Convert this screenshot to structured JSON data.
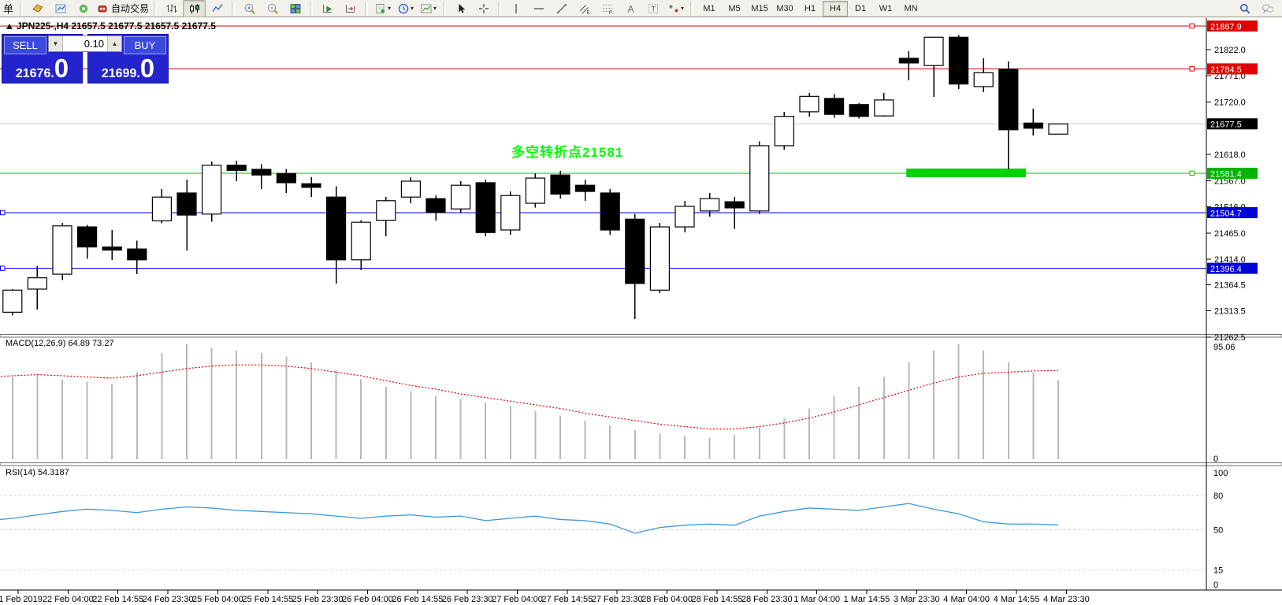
{
  "toolbar": {
    "left_text": "单",
    "groups": [
      {
        "items": [
          {
            "icon": "order",
            "name": "new-order"
          },
          {
            "icon": "profile",
            "name": "profiles"
          },
          {
            "icon": "signal",
            "name": "signals"
          },
          {
            "icon": "autotrade",
            "name": "auto-trading",
            "label": "自动交易"
          }
        ]
      },
      {
        "items": [
          {
            "icon": "bars",
            "name": "bar-chart-mode"
          },
          {
            "icon": "candles",
            "name": "candlestick-mode",
            "active": true
          },
          {
            "icon": "linechart",
            "name": "line-chart-mode"
          }
        ]
      },
      {
        "items": [
          {
            "icon": "zoomin",
            "name": "zoom-in"
          },
          {
            "icon": "zoomout",
            "name": "zoom-out"
          },
          {
            "icon": "tiles",
            "name": "tile-windows"
          }
        ]
      },
      {
        "items": [
          {
            "icon": "shiftplay",
            "name": "auto-scroll"
          },
          {
            "icon": "shiftend",
            "name": "chart-shift"
          }
        ]
      },
      {
        "items": [
          {
            "icon": "addind",
            "name": "new-chart",
            "caret": true
          },
          {
            "icon": "clock",
            "name": "periods",
            "caret": true
          },
          {
            "icon": "template",
            "name": "templates",
            "caret": true
          }
        ]
      },
      {
        "items": [
          {
            "icon": "cursor",
            "name": "cursor-tool"
          },
          {
            "icon": "crosshair",
            "name": "crosshair-tool"
          }
        ]
      },
      {
        "items": [
          {
            "icon": "vline",
            "name": "vertical-line-tool"
          },
          {
            "icon": "hline",
            "name": "horizontal-line-tool"
          },
          {
            "icon": "tline",
            "name": "trendline-tool"
          },
          {
            "icon": "channel",
            "name": "equidistant-channel-tool"
          },
          {
            "icon": "fibo",
            "name": "fibonacci-tool"
          },
          {
            "icon": "textA",
            "name": "text-tool"
          },
          {
            "icon": "labelT",
            "name": "text-label-tool"
          },
          {
            "icon": "arrows",
            "name": "arrows-tool",
            "caret": true
          }
        ]
      },
      {
        "type": "timeframes",
        "items": [
          {
            "text": "M1"
          },
          {
            "text": "M5"
          },
          {
            "text": "M15"
          },
          {
            "text": "M30"
          },
          {
            "text": "H1"
          },
          {
            "text": "H4",
            "active": true
          },
          {
            "text": "D1"
          },
          {
            "text": "W1"
          },
          {
            "text": "MN"
          }
        ]
      },
      {
        "type": "spacer"
      },
      {
        "items": [
          {
            "icon": "search",
            "name": "search"
          },
          {
            "icon": "chat",
            "name": "chat"
          }
        ]
      }
    ]
  },
  "quote_panel": {
    "sell_label": "SELL",
    "buy_label": "BUY",
    "volume": "0.10",
    "down_glyph": "▼",
    "up_glyph": "▲",
    "sell_price_small": "21676.",
    "sell_price_big": "0",
    "buy_price_small": "21699.",
    "buy_price_big": "0"
  },
  "chart": {
    "title": "JPN225-,H4 21657.5 21677.5 21657.5 21677.5",
    "annotation": {
      "text": "多空转折点21581",
      "color": "#00ff00"
    },
    "levels": [
      {
        "price": 21867.9,
        "line_color": "#e00000",
        "badge_bg": "#e00000",
        "anchor": "right"
      },
      {
        "price": 21784.5,
        "line_color": "#e00000",
        "badge_bg": "#e00000",
        "anchor": "right"
      },
      {
        "price": 21677.5,
        "line_color": "#c8c8c8",
        "badge_bg": "#000000",
        "anchor": null,
        "current": true
      },
      {
        "price": 21581.4,
        "line_color": "#00c000",
        "badge_bg": "#00b400",
        "anchor": "right"
      },
      {
        "price": 21504.7,
        "line_color": "#0000ee",
        "badge_bg": "#0000d8",
        "anchor": "left"
      },
      {
        "price": 21396.4,
        "line_color": "#0000ee",
        "badge_bg": "#0000d8",
        "anchor": "left"
      }
    ],
    "green_zone": {
      "from_candle": 36.9,
      "to_candle": 41.7,
      "price": 21581.4,
      "color": "#00d300"
    }
  },
  "macd": {
    "label": "MACD(12,26,9) 64.89 73.27",
    "axis_labels": [
      "95.06",
      "0"
    ]
  },
  "rsi": {
    "label": "RSI(14) 54.3187",
    "axis_labels": [
      100,
      80,
      50,
      15,
      0
    ]
  },
  "time_axis": [
    "21 Feb 2019",
    "22 Feb 04:00",
    "22 Feb 14:55",
    "24 Feb 23:30",
    "25 Feb 04:00",
    "25 Feb 14:55",
    "25 Feb 23:30",
    "26 Feb 04:00",
    "26 Feb 14:55",
    "26 Feb 23:30",
    "27 Feb 04:00",
    "27 Feb 14:55",
    "27 Feb 23:30",
    "28 Feb 04:00",
    "28 Feb 14:55",
    "28 Feb 23:30",
    "1 Mar 04:00",
    "1 Mar 14:55",
    "3 Mar 23:30",
    "4 Mar 04:00",
    "4 Mar 14:55",
    "4 Mar 23:30"
  ],
  "chart_data": [
    {
      "type": "candlestick",
      "title": "JPN225-,H4",
      "ylim": [
        21262.5,
        21890
      ],
      "y_ticks": [
        21822.0,
        21771.0,
        21720.0,
        21618.0,
        21567.0,
        21516.0,
        21465.0,
        21414.0,
        21364.5,
        21313.5,
        21262.5
      ],
      "x_labels": [
        "21 Feb 2019",
        "22 Feb 04:00",
        "22 Feb 14:55",
        "24 Feb 23:30",
        "25 Feb 04:00",
        "25 Feb 14:55",
        "25 Feb 23:30",
        "26 Feb 04:00",
        "26 Feb 14:55",
        "26 Feb 23:30",
        "27 Feb 04:00",
        "27 Feb 14:55",
        "27 Feb 23:30",
        "28 Feb 04:00",
        "28 Feb 14:55",
        "28 Feb 23:30",
        "1 Mar 04:00",
        "1 Mar 14:55",
        "3 Mar 23:30",
        "4 Mar 04:00",
        "4 Mar 14:55",
        "4 Mar 23:30"
      ],
      "ohlc": [
        [
          21300,
          21348,
          21295,
          21345
        ],
        [
          21311,
          21356,
          21305,
          21354
        ],
        [
          21356,
          21401,
          21316,
          21378
        ],
        [
          21385,
          21485,
          21374,
          21479
        ],
        [
          21477,
          21481,
          21415,
          21438
        ],
        [
          21438,
          21471,
          21413,
          21432
        ],
        [
          21434,
          21450,
          21385,
          21413
        ],
        [
          21489,
          21551,
          21484,
          21535
        ],
        [
          21543,
          21569,
          21431,
          21500
        ],
        [
          21502,
          21604,
          21487,
          21597
        ],
        [
          21597,
          21606,
          21566,
          21587
        ],
        [
          21589,
          21599,
          21551,
          21578
        ],
        [
          21581,
          21590,
          21543,
          21563
        ],
        [
          21561,
          21574,
          21535,
          21554
        ],
        [
          21535,
          21556,
          21367,
          21413
        ],
        [
          21413,
          21490,
          21393,
          21486
        ],
        [
          21490,
          21535,
          21459,
          21528
        ],
        [
          21535,
          21574,
          21523,
          21566
        ],
        [
          21532,
          21538,
          21489,
          21505
        ],
        [
          21512,
          21566,
          21505,
          21558
        ],
        [
          21563,
          21569,
          21459,
          21466
        ],
        [
          21471,
          21546,
          21462,
          21538
        ],
        [
          21523,
          21581,
          21515,
          21572
        ],
        [
          21578,
          21586,
          21532,
          21541
        ],
        [
          21558,
          21569,
          21528,
          21546
        ],
        [
          21543,
          21551,
          21462,
          21471
        ],
        [
          21492,
          21502,
          21298,
          21367
        ],
        [
          21354,
          21485,
          21348,
          21477
        ],
        [
          21477,
          21528,
          21466,
          21517
        ],
        [
          21508,
          21543,
          21497,
          21532
        ],
        [
          21526,
          21535,
          21473,
          21514
        ],
        [
          21508,
          21643,
          21502,
          21635
        ],
        [
          21635,
          21701,
          21627,
          21692
        ],
        [
          21701,
          21738,
          21692,
          21731
        ],
        [
          21727,
          21735,
          21689,
          21696
        ],
        [
          21715,
          21718,
          21688,
          21692
        ],
        [
          21693,
          21738,
          21692,
          21724
        ],
        [
          21805,
          21819,
          21762,
          21796
        ],
        [
          21791,
          21846,
          21730,
          21846
        ],
        [
          21846,
          21850,
          21745,
          21755
        ],
        [
          21750,
          21805,
          21739,
          21777
        ],
        [
          21784,
          21799,
          21589,
          21666
        ],
        [
          21679,
          21707,
          21655,
          21669
        ],
        [
          21657.5,
          21677.5,
          21657.5,
          21677.5
        ]
      ]
    },
    {
      "type": "bar",
      "title": "MACD(12,26,9)",
      "ylim": [
        0,
        95.06
      ],
      "current_values": [
        64.89,
        73.27
      ],
      "values": [
        66,
        68,
        70,
        66,
        64,
        62,
        72,
        88,
        95,
        92,
        90,
        88,
        85,
        80,
        74,
        66,
        60,
        56,
        52,
        50,
        47,
        44,
        40,
        36,
        32,
        28,
        24,
        21,
        19,
        18,
        20,
        26,
        34,
        42,
        52,
        60,
        68,
        80,
        90,
        95,
        90,
        80,
        72,
        65
      ],
      "signal": [
        68,
        69,
        70,
        69,
        68,
        67,
        69,
        72,
        75,
        77,
        78,
        78,
        77,
        75,
        72,
        69,
        65,
        61,
        58,
        54,
        51,
        48,
        45,
        42,
        38,
        35,
        32,
        29,
        27,
        25,
        25,
        27,
        30,
        34,
        39,
        45,
        51,
        57,
        63,
        68,
        71,
        72,
        73,
        73.3
      ]
    },
    {
      "type": "line",
      "title": "RSI(14)",
      "ylim": [
        0,
        100
      ],
      "levels": [
        80,
        50,
        15
      ],
      "current_value": 54.3187,
      "values": [
        58,
        60,
        63,
        66,
        68,
        67,
        65,
        68,
        70,
        69,
        67,
        66,
        65,
        64,
        62,
        60,
        62,
        63,
        61,
        62,
        58,
        60,
        62,
        59,
        58,
        55,
        47,
        52,
        54,
        55,
        54,
        62,
        66,
        69,
        68,
        67,
        70,
        73,
        68,
        64,
        57,
        55,
        55,
        54.3
      ]
    }
  ]
}
